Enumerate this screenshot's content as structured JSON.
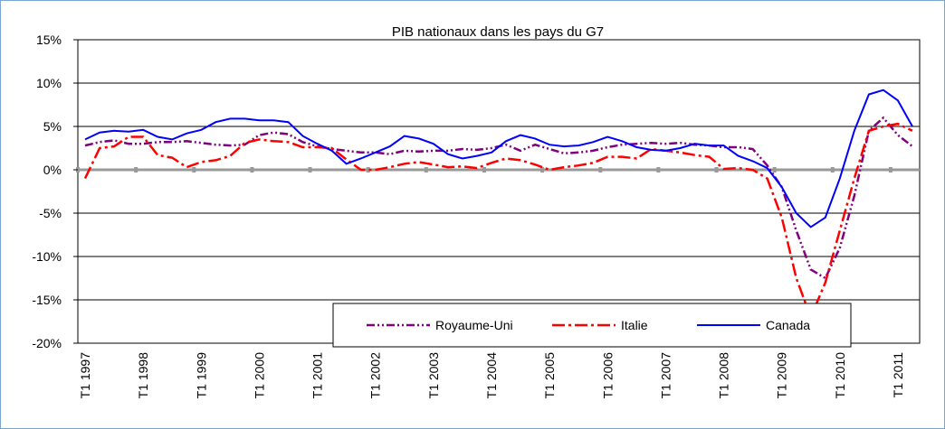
{
  "chart_data": {
    "type": "line",
    "title": "PIB nationaux dans les pays du G7",
    "categories": [
      "T1 1997",
      null,
      null,
      null,
      "T1 1998",
      null,
      null,
      null,
      "T1 1999",
      null,
      null,
      null,
      "T1 2000",
      null,
      null,
      null,
      "T1 2001",
      null,
      null,
      null,
      "T1 2002",
      null,
      null,
      null,
      "T1 2003",
      null,
      null,
      null,
      "T1 2004",
      null,
      null,
      null,
      "T1 2005",
      null,
      null,
      null,
      "T1 2006",
      null,
      null,
      null,
      "T1 2007",
      null,
      null,
      null,
      "T1 2008",
      null,
      null,
      null,
      "T1 2009",
      null,
      null,
      null,
      "T1 2010",
      null,
      null,
      null,
      "T1 2011",
      null
    ],
    "series": [
      {
        "name": "Royaume-Uni",
        "color": "#800080",
        "values": [
          2.8,
          3.2,
          3.4,
          3.0,
          3.0,
          3.2,
          3.2,
          3.3,
          3.1,
          2.9,
          2.8,
          2.9,
          4.0,
          4.3,
          4.1,
          3.2,
          2.7,
          2.4,
          2.2,
          2.0,
          2.0,
          1.8,
          2.2,
          2.1,
          2.2,
          2.2,
          2.4,
          2.3,
          2.5,
          2.9,
          2.2,
          2.9,
          2.4,
          1.9,
          2.0,
          2.2,
          2.6,
          2.9,
          3.0,
          3.1,
          3.0,
          3.1,
          2.9,
          2.8,
          2.6,
          2.6,
          2.4,
          0.5,
          -2.0,
          -7.0,
          -11.5,
          -12.5,
          -9.0,
          -3.0,
          4.5,
          6.0,
          4.0,
          2.7
        ]
      },
      {
        "name": "Italie",
        "color": "#ff0000",
        "values": [
          -1.0,
          2.5,
          2.7,
          3.8,
          3.8,
          1.7,
          1.4,
          0.3,
          0.9,
          1.1,
          1.6,
          3.1,
          3.5,
          3.3,
          3.2,
          2.6,
          2.6,
          2.5,
          1.2,
          0.0,
          0.0,
          0.3,
          0.7,
          0.9,
          0.6,
          0.3,
          0.4,
          0.2,
          0.8,
          1.3,
          1.1,
          0.6,
          0.0,
          0.3,
          0.5,
          0.8,
          1.5,
          1.5,
          1.3,
          2.4,
          2.2,
          2.0,
          1.7,
          1.5,
          0.1,
          0.2,
          0.0,
          -1.0,
          -5.5,
          -12.5,
          -17.0,
          -13.0,
          -7.0,
          -1.0,
          4.5,
          5.0,
          5.3,
          4.5
        ]
      },
      {
        "name": "Canada",
        "color": "#0000ff",
        "values": [
          3.5,
          4.3,
          4.5,
          4.4,
          4.6,
          3.8,
          3.5,
          4.2,
          4.6,
          5.5,
          5.9,
          5.9,
          5.7,
          5.7,
          5.5,
          3.9,
          3.0,
          2.2,
          0.7,
          1.3,
          2.0,
          2.7,
          3.9,
          3.6,
          3.0,
          1.8,
          1.3,
          1.6,
          2.0,
          3.3,
          4.0,
          3.6,
          2.9,
          2.7,
          2.8,
          3.2,
          3.8,
          3.3,
          2.6,
          2.3,
          2.2,
          2.5,
          3.0,
          2.8,
          2.8,
          1.6,
          1.0,
          0.2,
          -2.0,
          -5.0,
          -6.6,
          -5.5,
          -1.0,
          4.5,
          8.7,
          9.2,
          8.0,
          5.0
        ]
      }
    ],
    "ylim": [
      -20,
      15
    ],
    "yticks": [
      {
        "value": -20,
        "label": "-20%"
      },
      {
        "value": -15,
        "label": "-15%"
      },
      {
        "value": -10,
        "label": "-10%"
      },
      {
        "value": -5,
        "label": "-5%"
      },
      {
        "value": 0,
        "label": "0%"
      },
      {
        "value": 5,
        "label": "5%"
      },
      {
        "value": 10,
        "label": "10%"
      },
      {
        "value": 15,
        "label": "15%"
      }
    ],
    "grid": true
  }
}
